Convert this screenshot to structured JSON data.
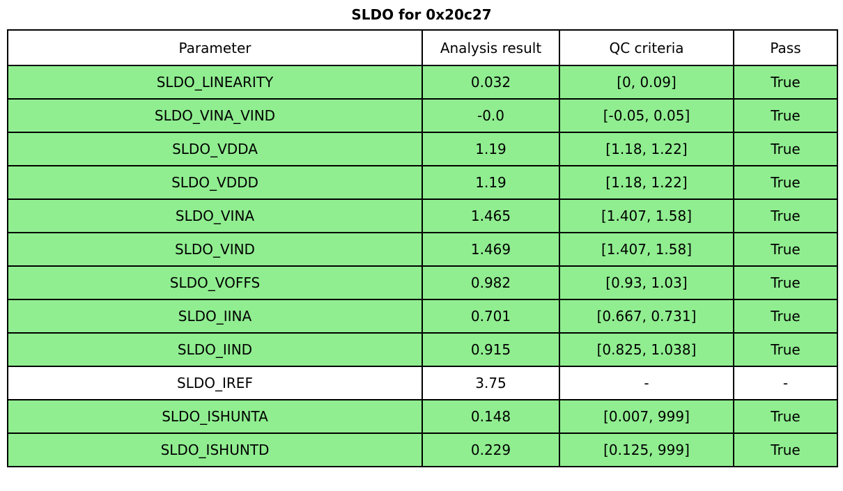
{
  "title": "SLDO for 0x20c27",
  "colors": {
    "pass_row_bg": "#90EE90",
    "neutral_row_bg": "#FFFFFF",
    "border": "#000000",
    "text": "#000000"
  },
  "table": {
    "columns": [
      "Parameter",
      "Analysis result",
      "QC criteria",
      "Pass"
    ],
    "rows": [
      {
        "parameter": "SLDO_LINEARITY",
        "result": "0.032",
        "criteria": "[0, 0.09]",
        "pass": "True",
        "highlight": true
      },
      {
        "parameter": "SLDO_VINA_VIND",
        "result": "-0.0",
        "criteria": "[-0.05, 0.05]",
        "pass": "True",
        "highlight": true
      },
      {
        "parameter": "SLDO_VDDA",
        "result": "1.19",
        "criteria": "[1.18, 1.22]",
        "pass": "True",
        "highlight": true
      },
      {
        "parameter": "SLDO_VDDD",
        "result": "1.19",
        "criteria": "[1.18, 1.22]",
        "pass": "True",
        "highlight": true
      },
      {
        "parameter": "SLDO_VINA",
        "result": "1.465",
        "criteria": "[1.407, 1.58]",
        "pass": "True",
        "highlight": true
      },
      {
        "parameter": "SLDO_VIND",
        "result": "1.469",
        "criteria": "[1.407, 1.58]",
        "pass": "True",
        "highlight": true
      },
      {
        "parameter": "SLDO_VOFFS",
        "result": "0.982",
        "criteria": "[0.93, 1.03]",
        "pass": "True",
        "highlight": true
      },
      {
        "parameter": "SLDO_IINA",
        "result": "0.701",
        "criteria": "[0.667, 0.731]",
        "pass": "True",
        "highlight": true
      },
      {
        "parameter": "SLDO_IIND",
        "result": "0.915",
        "criteria": "[0.825, 1.038]",
        "pass": "True",
        "highlight": true
      },
      {
        "parameter": "SLDO_IREF",
        "result": "3.75",
        "criteria": "-",
        "pass": "-",
        "highlight": false
      },
      {
        "parameter": "SLDO_ISHUNTA",
        "result": "0.148",
        "criteria": "[0.007, 999]",
        "pass": "True",
        "highlight": true
      },
      {
        "parameter": "SLDO_ISHUNTD",
        "result": "0.229",
        "criteria": "[0.125, 999]",
        "pass": "True",
        "highlight": true
      }
    ]
  },
  "chart_data": {
    "type": "table",
    "title": "SLDO for 0x20c27",
    "columns": [
      "Parameter",
      "Analysis result",
      "QC criteria",
      "Pass"
    ],
    "rows": [
      [
        "SLDO_LINEARITY",
        0.032,
        "[0, 0.09]",
        "True"
      ],
      [
        "SLDO_VINA_VIND",
        -0.0,
        "[-0.05, 0.05]",
        "True"
      ],
      [
        "SLDO_VDDA",
        1.19,
        "[1.18, 1.22]",
        "True"
      ],
      [
        "SLDO_VDDD",
        1.19,
        "[1.18, 1.22]",
        "True"
      ],
      [
        "SLDO_VINA",
        1.465,
        "[1.407, 1.58]",
        "True"
      ],
      [
        "SLDO_VIND",
        1.469,
        "[1.407, 1.58]",
        "True"
      ],
      [
        "SLDO_VOFFS",
        0.982,
        "[0.93, 1.03]",
        "True"
      ],
      [
        "SLDO_IINA",
        0.701,
        "[0.667, 0.731]",
        "True"
      ],
      [
        "SLDO_IIND",
        0.915,
        "[0.825, 1.038]",
        "True"
      ],
      [
        "SLDO_IREF",
        3.75,
        "-",
        "-"
      ],
      [
        "SLDO_ISHUNTA",
        0.148,
        "[0.007, 999]",
        "True"
      ],
      [
        "SLDO_ISHUNTD",
        0.229,
        "[0.125, 999]",
        "True"
      ]
    ],
    "layout": {
      "highlight_color": "#90EE90",
      "highlight_meaning": "row passed QC",
      "grid": true
    }
  }
}
